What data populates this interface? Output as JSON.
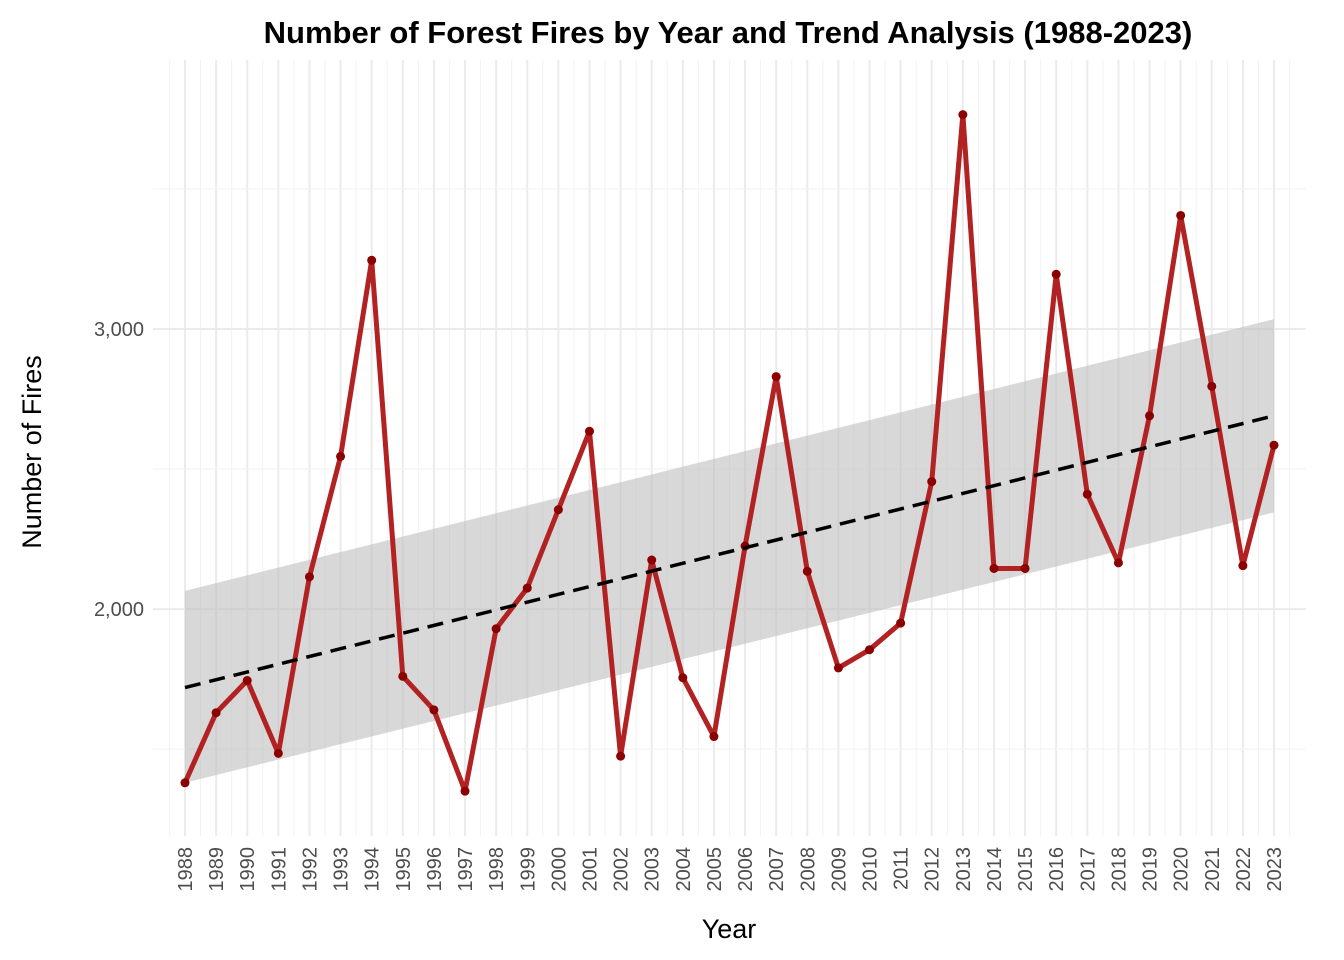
{
  "chart_data": {
    "type": "line",
    "title": "Number of Forest Fires by Year and Trend Analysis (1988-2023)",
    "xlabel": "Year",
    "ylabel": "Number of Fires",
    "x": [
      1988,
      1989,
      1990,
      1991,
      1992,
      1993,
      1994,
      1995,
      1996,
      1997,
      1998,
      1999,
      2000,
      2001,
      2002,
      2003,
      2004,
      2005,
      2006,
      2007,
      2008,
      2009,
      2010,
      2011,
      2012,
      2013,
      2014,
      2015,
      2016,
      2017,
      2018,
      2019,
      2020,
      2021,
      2022,
      2023
    ],
    "series": [
      {
        "values": [
          1380,
          1630,
          1745,
          1485,
          2115,
          2545,
          3245,
          1760,
          1640,
          1350,
          1930,
          2075,
          2355,
          2635,
          1475,
          2175,
          1755,
          1545,
          2225,
          2830,
          2135,
          1790,
          1855,
          1950,
          2455,
          3765,
          2145,
          2145,
          3195,
          2410,
          2165,
          2690,
          3405,
          2795,
          2155,
          2585
        ],
        "color": "#b22222",
        "point_color": "#8b0000"
      }
    ],
    "trend": {
      "type": "linear",
      "start": 1720,
      "end": 2690,
      "ci_start": [
        1380,
        2065
      ],
      "ci_end": [
        2345,
        3035
      ],
      "color": "#000000",
      "ci_color": "#bebebe"
    },
    "ylim": [
      1190,
      3960
    ],
    "yticks": [
      2000,
      3000
    ],
    "ytick_labels": [
      "2,000",
      "3,000"
    ],
    "grid": true
  }
}
